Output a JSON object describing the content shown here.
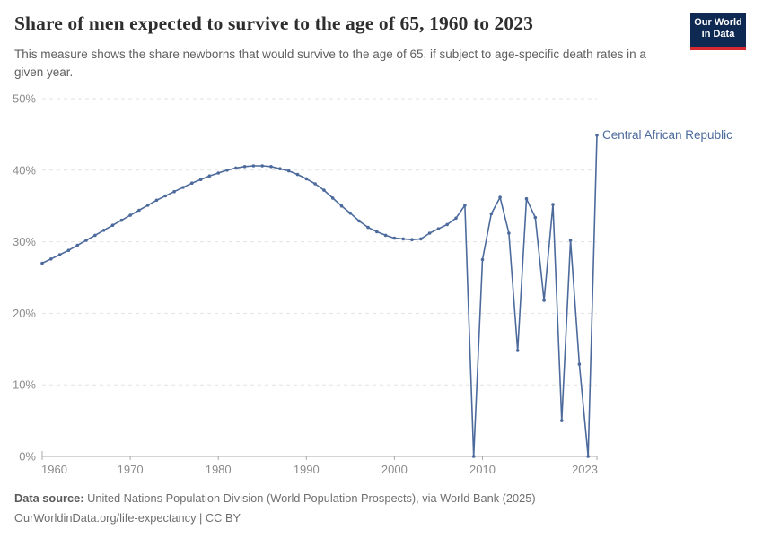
{
  "header": {
    "title": "Share of men expected to survive to the age of 65, 1960 to 2023",
    "subtitle": "This measure shows the share newborns that would survive to the age of 65, if subject to age-specific death rates in a given year.",
    "logo_line1": "Our World",
    "logo_line2": "in Data"
  },
  "colors": {
    "line": "#4c6a9c",
    "logo_background": "#0e2a52",
    "logo_red_bar": "#d7292f",
    "axis_text": "#8b8b8b",
    "gridline": "#e2e2e2"
  },
  "chart_data": {
    "type": "line",
    "title": "Share of men expected to survive to the age of 65, 1960 to 2023",
    "entity_label": "Central African Republic",
    "line_color": "#4c6a9c",
    "y_unit": "%",
    "ylim": [
      0,
      50
    ],
    "yticks": [
      0,
      10,
      20,
      30,
      40,
      50
    ],
    "xticks": [
      1960,
      1970,
      1980,
      1990,
      2000,
      2010,
      2023
    ],
    "grid": "horizontal-dashed",
    "legend_position": "end-of-line-label",
    "x": [
      1960,
      1961,
      1962,
      1963,
      1964,
      1965,
      1966,
      1967,
      1968,
      1969,
      1970,
      1971,
      1972,
      1973,
      1974,
      1975,
      1976,
      1977,
      1978,
      1979,
      1980,
      1981,
      1982,
      1983,
      1984,
      1985,
      1986,
      1987,
      1988,
      1989,
      1990,
      1991,
      1992,
      1993,
      1994,
      1995,
      1996,
      1997,
      1998,
      1999,
      2000,
      2001,
      2002,
      2003,
      2004,
      2005,
      2006,
      2007,
      2008,
      2009,
      2010,
      2011,
      2012,
      2013,
      2014,
      2015,
      2016,
      2017,
      2018,
      2019,
      2020,
      2021,
      2022,
      2023
    ],
    "values": [
      27.0,
      27.6,
      28.2,
      28.8,
      29.5,
      30.2,
      30.9,
      31.6,
      32.3,
      33.0,
      33.7,
      34.4,
      35.1,
      35.8,
      36.4,
      37.0,
      37.6,
      38.2,
      38.7,
      39.2,
      39.6,
      40.0,
      40.3,
      40.5,
      40.6,
      40.6,
      40.5,
      40.2,
      39.9,
      39.4,
      38.8,
      38.1,
      37.2,
      36.1,
      35.0,
      34.0,
      32.9,
      32.0,
      31.4,
      30.9,
      30.5,
      30.4,
      30.3,
      30.4,
      31.2,
      31.8,
      32.4,
      33.3,
      35.1,
      0.0,
      27.5,
      33.9,
      36.2,
      31.2,
      14.8,
      36.0,
      33.4,
      21.8,
      35.2,
      5.0,
      30.2,
      12.9,
      0.0,
      44.9
    ]
  },
  "footer": {
    "source_label": "Data source:",
    "source_text": "United Nations Population Division (World Population Prospects), via World Bank (2025)",
    "license_text": "OurWorldinData.org/life-expectancy | CC BY"
  }
}
